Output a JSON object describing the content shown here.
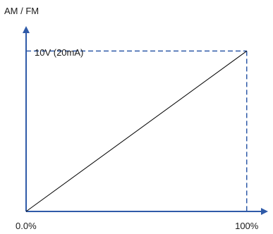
{
  "chart_data": {
    "type": "line",
    "title": "",
    "ylabel": "AM / FM",
    "xlabel": "",
    "x_tick_labels": [
      "0.0%",
      "100%"
    ],
    "annotation": "10V (20mA)",
    "x": [
      0,
      100
    ],
    "series": [
      {
        "values": [
          0,
          10
        ]
      }
    ],
    "xlim": [
      0,
      110
    ],
    "ylim": [
      0,
      11.6
    ],
    "grid": false,
    "reference_lines": {
      "x_value": 100,
      "y_value": 10,
      "style": "dashed"
    },
    "colors": {
      "axis": "#2f5aa8",
      "line": "#000000",
      "reference": "#2f5aa8",
      "text": "#1a1a1a"
    }
  }
}
